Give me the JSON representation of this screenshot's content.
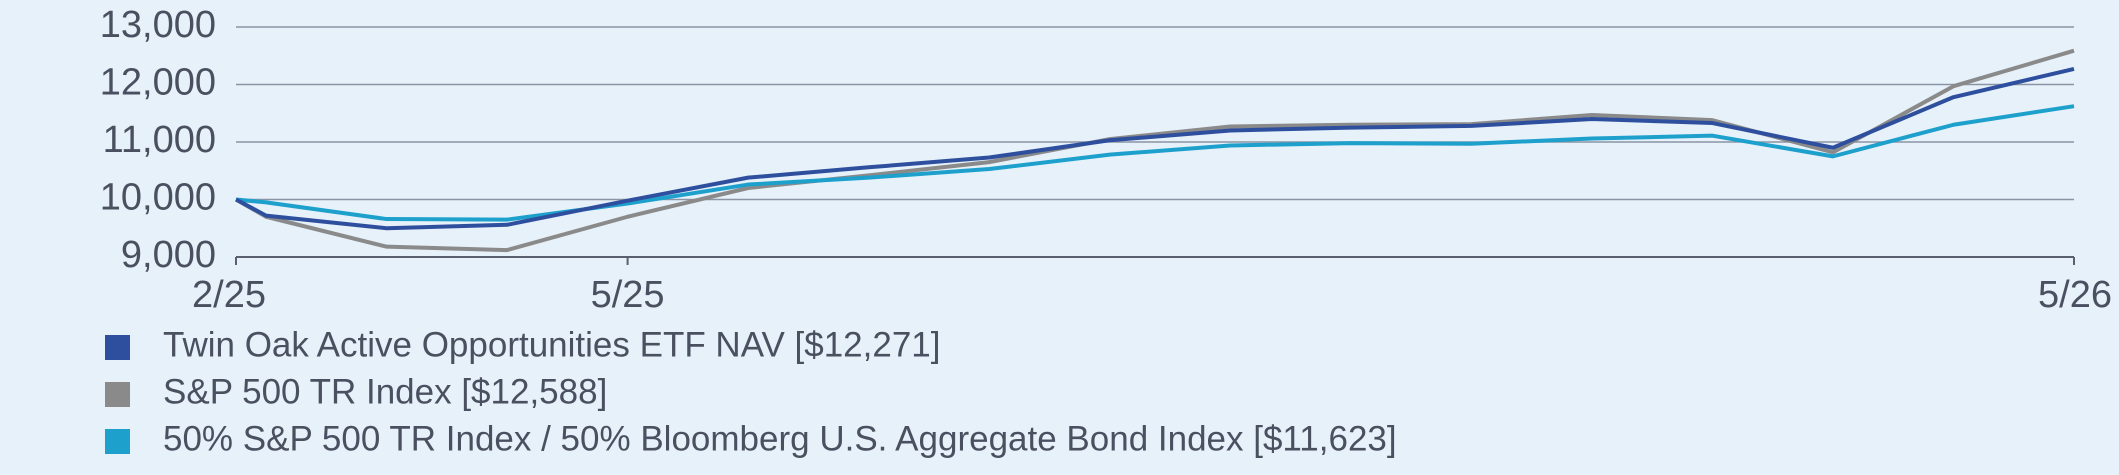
{
  "chart_data": {
    "type": "line",
    "categories": [
      "2/25",
      null,
      null,
      null,
      "5/25",
      null,
      null,
      null,
      null,
      null,
      null,
      null,
      null,
      null,
      null,
      null,
      "5/26"
    ],
    "series": [
      {
        "name": "Twin Oak Active Opportunities ETF NAV [$12,271]",
        "color": "#2e4f9e",
        "values": [
          10000,
          9720,
          9500,
          9560,
          9980,
          10380,
          10560,
          10730,
          11030,
          11200,
          11250,
          11280,
          11400,
          11330,
          10900,
          11780,
          12271
        ]
      },
      {
        "name": "S&P 500 TR Index [$12,588]",
        "color": "#8a8a8a",
        "values": [
          10000,
          9700,
          9180,
          9120,
          9700,
          10200,
          10420,
          10650,
          11050,
          11270,
          11300,
          11310,
          11470,
          11380,
          10820,
          11970,
          12588
        ]
      },
      {
        "name": "50% S&P 500 TR Index / 50% Bloomberg U.S. Aggregate Bond Index [$11,623]",
        "color": "#1ea0cc",
        "values": [
          10000,
          9950,
          9660,
          9650,
          9930,
          10260,
          10380,
          10530,
          10780,
          10940,
          10980,
          10970,
          11060,
          11110,
          10750,
          11300,
          11623
        ]
      }
    ],
    "ylim": [
      9000,
      13000
    ],
    "yticks": [
      {
        "value": 9000,
        "label": "9,000"
      },
      {
        "value": 10000,
        "label": "10,000"
      },
      {
        "value": 11000,
        "label": "11,000"
      },
      {
        "value": 12000,
        "label": "12,000"
      },
      {
        "value": 13000,
        "label": "13,000"
      }
    ],
    "grid": true
  }
}
